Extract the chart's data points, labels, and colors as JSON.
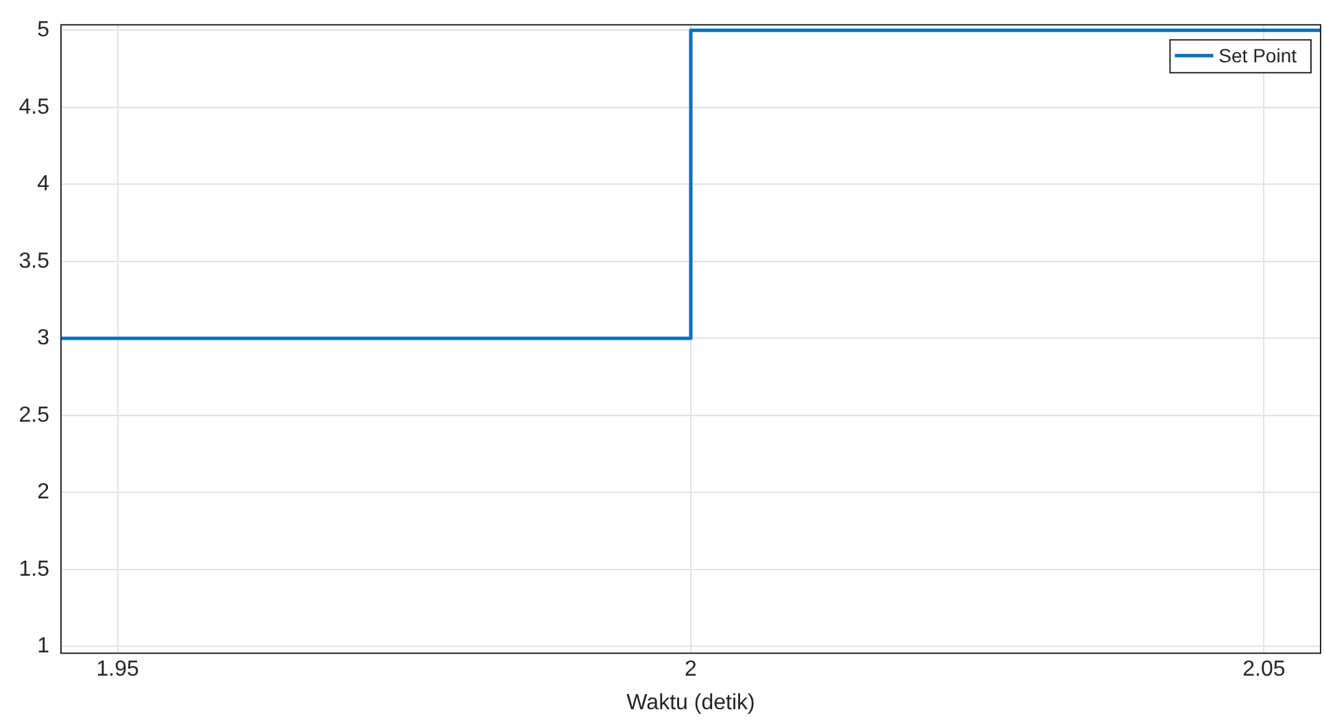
{
  "chart_data": {
    "type": "step",
    "xlabel": "Waktu (detik)",
    "xlim": [
      1.945,
      2.055
    ],
    "xticks": [
      1.95,
      2,
      2.05
    ],
    "ylim": [
      0.96,
      5.04
    ],
    "yticks": [
      1,
      1.5,
      2,
      2.5,
      3,
      3.5,
      4,
      4.5,
      5
    ],
    "grid": true,
    "legend": "top right",
    "line_style": "solid",
    "marker": "none",
    "series": [
      {
        "name": "Set Point",
        "color": "#0072bd",
        "x": [
          1.945,
          2,
          2.055
        ],
        "values": [
          3,
          5,
          5
        ]
      }
    ]
  }
}
